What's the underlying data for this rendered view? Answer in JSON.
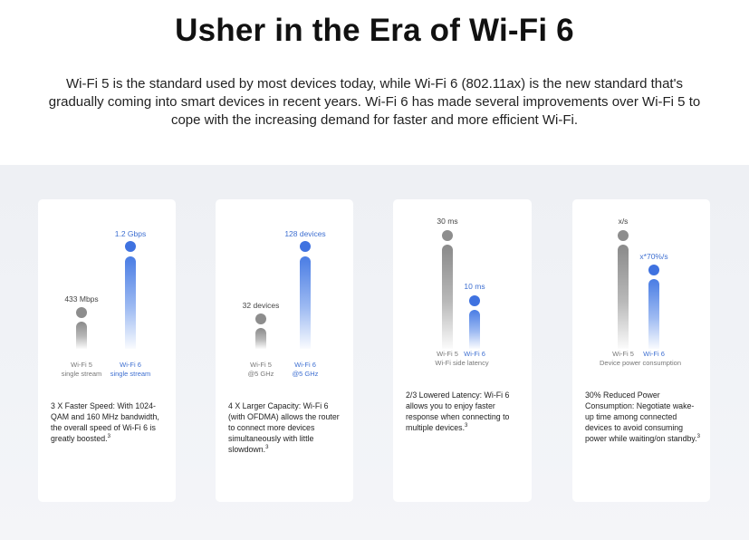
{
  "header": {
    "title": "Usher in the Era of Wi-Fi 6",
    "intro": "Wi-Fi 5 is the standard used by most devices today, while Wi-Fi 6 (802.11ax) is the new standard that's gradually coming into smart devices in recent years. Wi-Fi 6 has made several improvements over Wi-Fi 5 to cope with the increasing demand for faster and more efficient Wi-Fi."
  },
  "cards": [
    {
      "wifi5_value": "433 Mbps",
      "wifi6_value": "1.2 Gbps",
      "wifi5_label": "Wi-Fi 5",
      "wifi5_sublabel": "single stream",
      "wifi6_label": "Wi-Fi 6",
      "wifi6_sublabel": "single stream",
      "description": "3 X Faster Speed: With 1024-QAM and 160 MHz bandwidth, the overall speed of Wi-Fi 6 is greatly boosted.",
      "footnote": "3"
    },
    {
      "wifi5_value": "32 devices",
      "wifi6_value": "128 devices",
      "wifi5_label": "Wi-Fi 5",
      "wifi5_sublabel": "@5 GHz",
      "wifi6_label": "Wi-Fi 6",
      "wifi6_sublabel": "@5 GHz",
      "description": "4 X Larger Capacity: Wi-Fi 6 (with OFDMA) allows the router to connect more devices simultaneously with little slowdown.",
      "footnote": "3"
    },
    {
      "wifi5_value": "30 ms",
      "wifi6_value": "10 ms",
      "wifi5_label": "Wi-Fi 5",
      "wifi6_label": "Wi-Fi 6",
      "caption": "Wi-Fi side latency",
      "description": "2/3 Lowered Latency: Wi-Fi 6 allows you to enjoy faster response when connecting to multiple devices.",
      "footnote": "3"
    },
    {
      "wifi5_value": "x/s",
      "wifi6_value": "x*70%/s",
      "wifi5_label": "Wi-Fi 5",
      "wifi6_label": "Wi-Fi 6",
      "caption": "Device power consumption",
      "description": "30% Reduced Power Consumption: Negotiate wake-up time among connected devices to avoid consuming power while waiting/on standby.",
      "footnote": "3"
    }
  ],
  "colors": {
    "wifi5": "#8d8d8d",
    "wifi6": "#3f72e0",
    "background": "#eef0f4"
  }
}
